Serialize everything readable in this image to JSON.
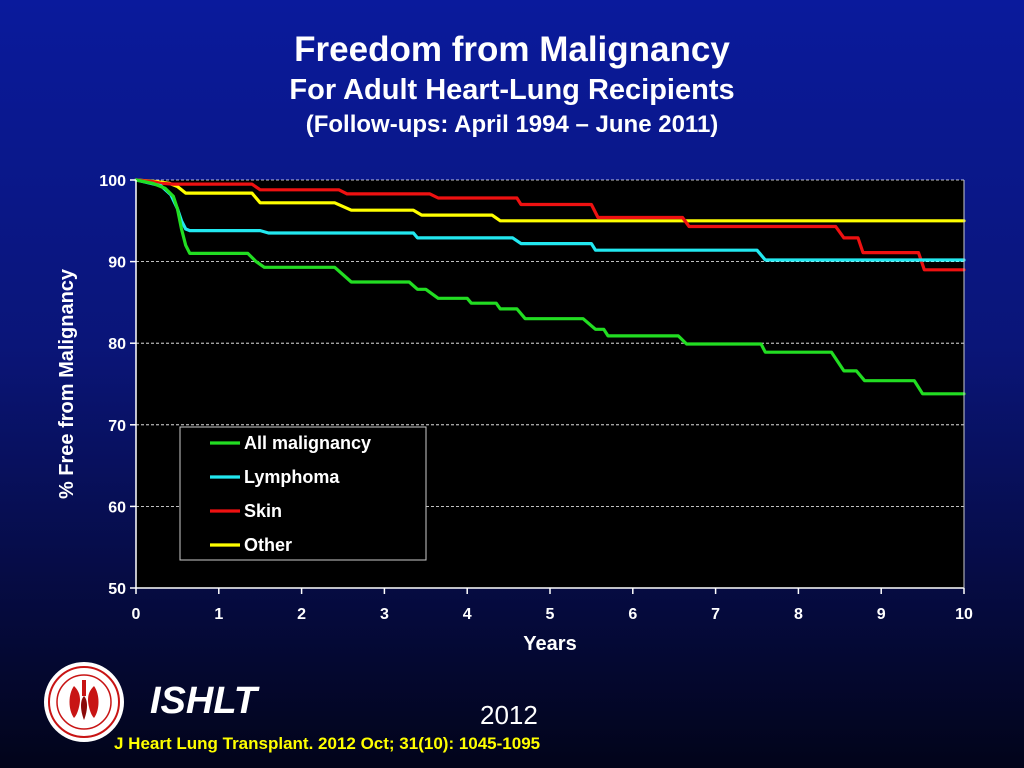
{
  "header": {
    "title": "Freedom from Malignancy",
    "subtitle": "For Adult Heart-Lung Recipients",
    "followup": "(Follow-ups: April 1994 – June 2011)"
  },
  "footer": {
    "brand": "ISHLT",
    "year": "2012",
    "citation": "J Heart Lung Transplant.  2012 Oct; 31(10): 1045-1095",
    "logo_icon": "ishlt-logo-icon"
  },
  "chart_data": {
    "type": "line",
    "xlabel": "Years",
    "ylabel": "% Free from Malignancy",
    "xlim": [
      0,
      10
    ],
    "ylim": [
      50,
      100
    ],
    "xticks": [
      0,
      1,
      2,
      3,
      4,
      5,
      6,
      7,
      8,
      9,
      10
    ],
    "yticks": [
      50,
      60,
      70,
      80,
      90,
      100
    ],
    "grid": "horizontal dashed",
    "legend_position": "lower-left",
    "series": [
      {
        "name": "All malignancy",
        "color": "#22dd22",
        "points": [
          [
            0,
            100
          ],
          [
            0.2,
            99.6
          ],
          [
            0.35,
            99
          ],
          [
            0.45,
            98
          ],
          [
            0.5,
            96.5
          ],
          [
            0.55,
            94
          ],
          [
            0.6,
            92
          ],
          [
            0.65,
            91
          ],
          [
            1.35,
            91
          ],
          [
            1.45,
            90
          ],
          [
            1.55,
            89.3
          ],
          [
            2.4,
            89.3
          ],
          [
            2.6,
            87.5
          ],
          [
            3.3,
            87.5
          ],
          [
            3.4,
            86.6
          ],
          [
            3.5,
            86.6
          ],
          [
            3.65,
            85.5
          ],
          [
            4.0,
            85.5
          ],
          [
            4.05,
            84.9
          ],
          [
            4.35,
            84.9
          ],
          [
            4.4,
            84.2
          ],
          [
            4.6,
            84.2
          ],
          [
            4.7,
            83
          ],
          [
            5.4,
            83
          ],
          [
            5.55,
            81.7
          ],
          [
            5.65,
            81.7
          ],
          [
            5.7,
            80.9
          ],
          [
            6.55,
            80.9
          ],
          [
            6.65,
            79.9
          ],
          [
            7.55,
            79.9
          ],
          [
            7.6,
            78.9
          ],
          [
            8.4,
            78.9
          ],
          [
            8.55,
            76.6
          ],
          [
            8.7,
            76.6
          ],
          [
            8.8,
            75.4
          ],
          [
            9.4,
            75.4
          ],
          [
            9.5,
            73.8
          ],
          [
            10,
            73.8
          ]
        ]
      },
      {
        "name": "Lymphoma",
        "color": "#22e8f0",
        "points": [
          [
            0,
            100
          ],
          [
            0.3,
            99.3
          ],
          [
            0.42,
            98.2
          ],
          [
            0.5,
            96.5
          ],
          [
            0.55,
            95
          ],
          [
            0.6,
            94
          ],
          [
            0.65,
            93.8
          ],
          [
            1.5,
            93.8
          ],
          [
            1.6,
            93.5
          ],
          [
            3.35,
            93.5
          ],
          [
            3.4,
            92.9
          ],
          [
            4.55,
            92.9
          ],
          [
            4.65,
            92.2
          ],
          [
            5.5,
            92.2
          ],
          [
            5.55,
            91.4
          ],
          [
            7.5,
            91.4
          ],
          [
            7.6,
            90.2
          ],
          [
            10,
            90.2
          ]
        ]
      },
      {
        "name": "Skin",
        "color": "#ee1111",
        "points": [
          [
            0,
            100
          ],
          [
            0.2,
            99.8
          ],
          [
            0.3,
            99.6
          ],
          [
            0.45,
            99.5
          ],
          [
            1.4,
            99.5
          ],
          [
            1.5,
            98.8
          ],
          [
            2.45,
            98.8
          ],
          [
            2.55,
            98.3
          ],
          [
            3.55,
            98.3
          ],
          [
            3.65,
            97.8
          ],
          [
            4.6,
            97.8
          ],
          [
            4.65,
            97
          ],
          [
            5.5,
            97
          ],
          [
            5.58,
            95.4
          ],
          [
            6.6,
            95.4
          ],
          [
            6.68,
            94.3
          ],
          [
            8.45,
            94.3
          ],
          [
            8.55,
            92.9
          ],
          [
            8.72,
            92.9
          ],
          [
            8.78,
            91.1
          ],
          [
            9.45,
            91.1
          ],
          [
            9.52,
            89
          ],
          [
            10,
            89
          ]
        ]
      },
      {
        "name": "Other",
        "color": "#ffff00",
        "points": [
          [
            0,
            100
          ],
          [
            0.25,
            99.8
          ],
          [
            0.4,
            99.6
          ],
          [
            0.5,
            99.2
          ],
          [
            0.6,
            98.4
          ],
          [
            1.4,
            98.4
          ],
          [
            1.5,
            97.2
          ],
          [
            2.4,
            97.2
          ],
          [
            2.6,
            96.3
          ],
          [
            3.35,
            96.3
          ],
          [
            3.45,
            95.7
          ],
          [
            4.3,
            95.7
          ],
          [
            4.4,
            95
          ],
          [
            10,
            95
          ]
        ]
      }
    ]
  }
}
